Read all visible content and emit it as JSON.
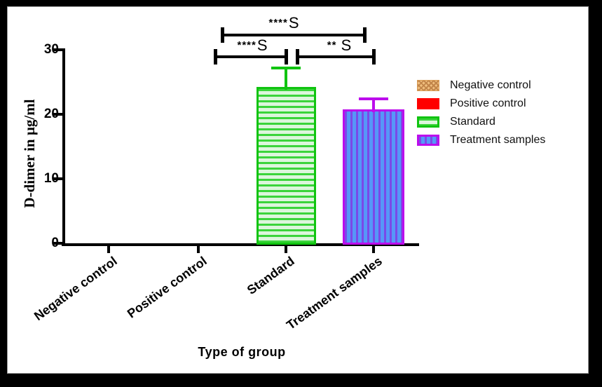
{
  "window": {
    "background": "#000000",
    "panel_background": "#ffffff",
    "panel_border": "#9a9a9a"
  },
  "chart_data": {
    "type": "bar",
    "title": "",
    "xlabel": "Type of group",
    "ylabel": "D-dimer in µg/ml",
    "categories": [
      "Negative control",
      "Positive control",
      "Standard",
      "Treatment samples"
    ],
    "values": [
      0,
      0,
      24.2,
      20.8
    ],
    "error_upper": [
      0,
      0,
      27.2,
      22.4
    ],
    "ylim": [
      0,
      30
    ],
    "yticks": [
      "0",
      "10",
      "20",
      "30"
    ],
    "grid": false,
    "legend_position": "right",
    "bar_styles": [
      {
        "label": "Negative control",
        "fill": "#F0BE7E",
        "pattern": "crosshatch",
        "pattern_color": "#C2854A",
        "border": "#D89B55"
      },
      {
        "label": "Positive control",
        "fill": "#FF0000",
        "pattern": "solid",
        "pattern_color": "#FF0000",
        "border": "#FF0000"
      },
      {
        "label": "Standard",
        "fill": "#DCF6DC",
        "pattern": "horizontal-stripes",
        "pattern_color": "#3BD43B",
        "border": "#10C410"
      },
      {
        "label": "Treatment samples",
        "fill": "#5697F8",
        "pattern": "vertical-stripes",
        "pattern_color": "#7A49E8",
        "border": "#BC0CEC"
      }
    ],
    "significance": [
      {
        "stars": "****",
        "letter": "S",
        "compares": [
          "Positive control",
          "Treatment samples"
        ]
      },
      {
        "stars": "****",
        "letter": "S",
        "compares": [
          "Positive control",
          "Standard"
        ]
      },
      {
        "stars": "** ",
        "letter": "S",
        "compares": [
          "Standard",
          "Treatment samples"
        ]
      }
    ]
  },
  "legend": {
    "items": [
      {
        "label": "Negative control"
      },
      {
        "label": "Positive control"
      },
      {
        "label": "Standard"
      },
      {
        "label": "Treatment samples"
      }
    ]
  }
}
